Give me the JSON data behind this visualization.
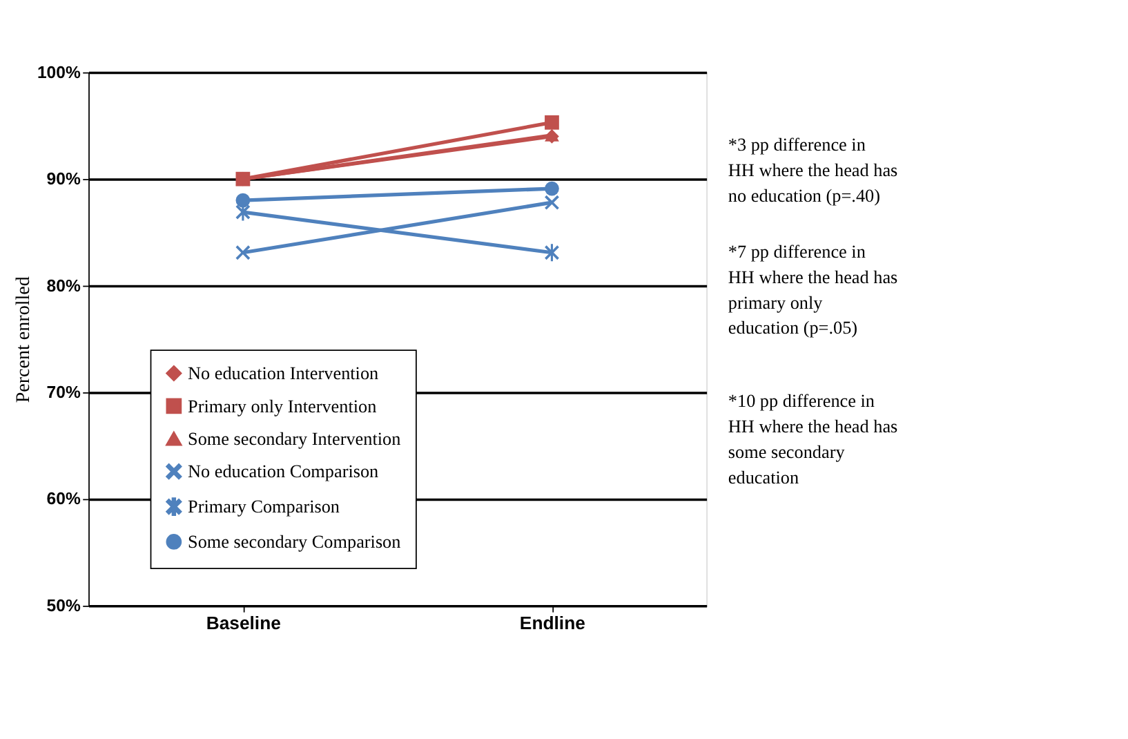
{
  "chart_data": {
    "type": "line",
    "ylabel": "Percent enrolled",
    "categories": [
      "Baseline",
      "Endline"
    ],
    "series": [
      {
        "name": "No education Intervention",
        "color": "#c0504d",
        "marker": "diamond",
        "values": [
          90.0,
          94.0
        ]
      },
      {
        "name": "Primary only Intervention",
        "color": "#c0504d",
        "marker": "square",
        "values": [
          90.0,
          95.3
        ]
      },
      {
        "name": "Some secondary Intervention",
        "color": "#c0504d",
        "marker": "triangle",
        "values": [
          90.0,
          94.1
        ]
      },
      {
        "name": "No education Comparison",
        "color": "#4f81bd",
        "marker": "cross",
        "values": [
          83.1,
          87.8
        ]
      },
      {
        "name": "Primary Comparison",
        "color": "#4f81bd",
        "marker": "star",
        "values": [
          86.9,
          83.1
        ]
      },
      {
        "name": "Some secondary Comparison",
        "color": "#4f81bd",
        "marker": "circle",
        "values": [
          88.0,
          89.1
        ]
      }
    ],
    "ylim": [
      50,
      100
    ],
    "yticks": [
      {
        "value": 50,
        "label": "50%"
      },
      {
        "value": 60,
        "label": "60%"
      },
      {
        "value": 70,
        "label": "70%"
      },
      {
        "value": 80,
        "label": "80%"
      },
      {
        "value": 90,
        "label": "90%"
      },
      {
        "value": 100,
        "label": "100%"
      }
    ],
    "grid": "y",
    "legend": "bottom",
    "line_style": "solid",
    "annotations": [
      "*3 pp difference in HH where the head has no education (p=.40)",
      "*7 pp difference in HH where the head has primary only education (p=.05)",
      "*10  pp difference in HH where the head has some secondary education"
    ]
  }
}
